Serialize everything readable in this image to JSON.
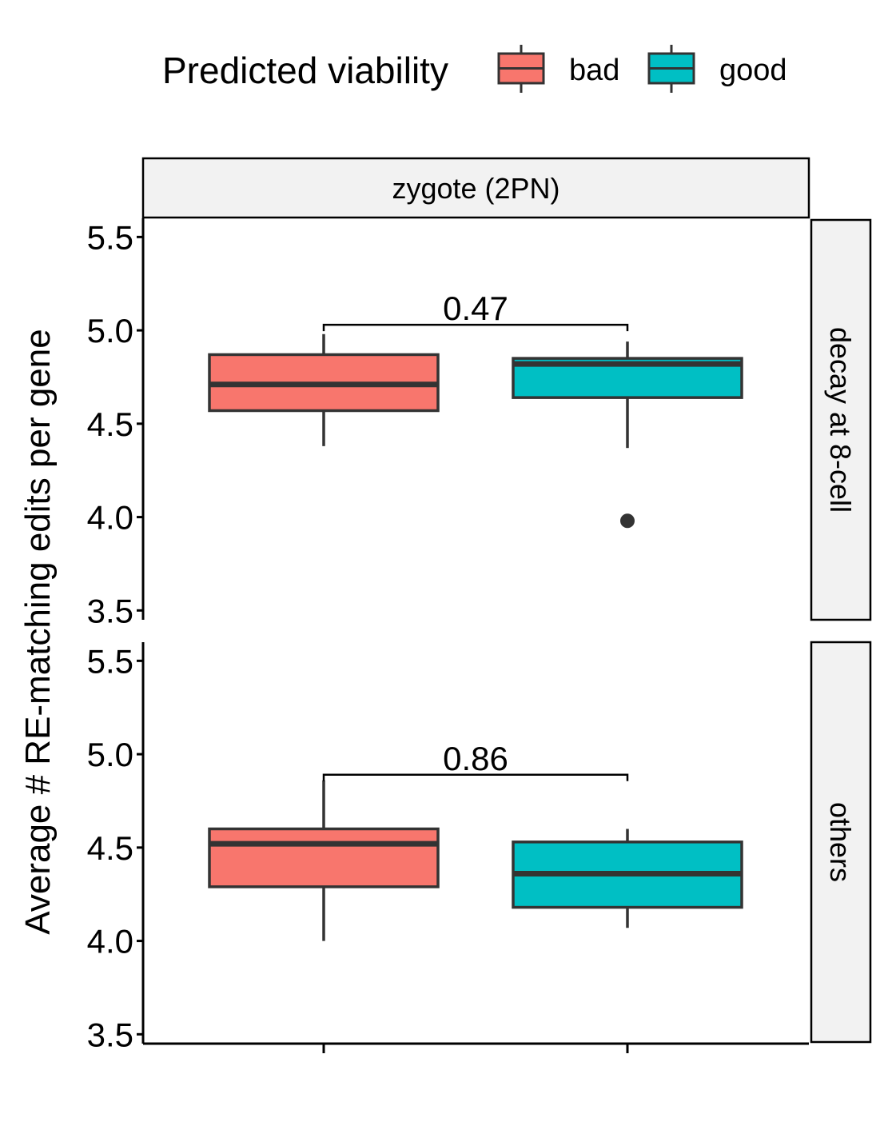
{
  "chart_data": {
    "type": "boxplot",
    "ylabel": "Average # RE-matching edits per gene",
    "xlabel": "",
    "legend": {
      "title": "Predicted viability",
      "position": "top",
      "entries": [
        {
          "name": "bad",
          "color": "#F8766D"
        },
        {
          "name": "good",
          "color": "#00BFC4"
        }
      ]
    },
    "facet_column": "zygote (2PN)",
    "ylim": [
      3.45,
      5.6
    ],
    "yticks": [
      3.5,
      4.0,
      4.5,
      5.0,
      5.5
    ],
    "ytick_labels": [
      "3.5",
      "4.0",
      "4.5",
      "5.0",
      "5.5"
    ],
    "groups": [
      "bad",
      "good"
    ],
    "panels": [
      {
        "facet_row": "decay at 8-cell",
        "pvalue": "0.47",
        "bracket_y": 5.03,
        "boxes": [
          {
            "group": "bad",
            "lower_whisker": 4.38,
            "q1": 4.57,
            "median": 4.71,
            "q3": 4.87,
            "upper_whisker": 4.98,
            "outliers": []
          },
          {
            "group": "good",
            "lower_whisker": 4.37,
            "q1": 4.64,
            "median": 4.82,
            "q3": 4.85,
            "upper_whisker": 4.94,
            "outliers": [
              3.98
            ]
          }
        ]
      },
      {
        "facet_row": "others",
        "pvalue": "0.86",
        "bracket_y": 4.89,
        "boxes": [
          {
            "group": "bad",
            "lower_whisker": 4.0,
            "q1": 4.29,
            "median": 4.52,
            "q3": 4.6,
            "upper_whisker": 4.86,
            "outliers": []
          },
          {
            "group": "good",
            "lower_whisker": 4.07,
            "q1": 4.18,
            "median": 4.36,
            "q3": 4.53,
            "upper_whisker": 4.6,
            "outliers": []
          }
        ]
      }
    ]
  }
}
